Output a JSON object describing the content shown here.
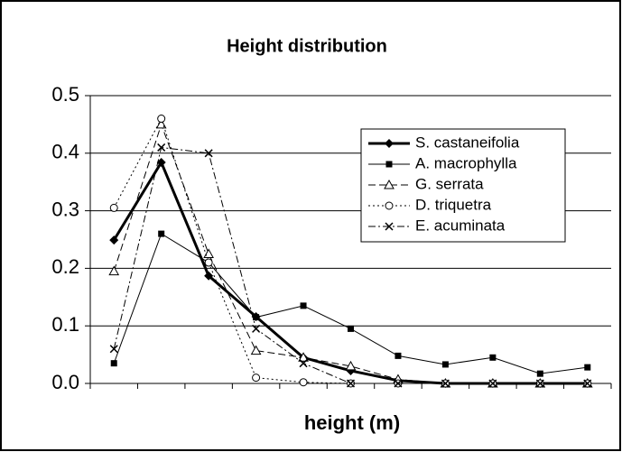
{
  "chart_data": {
    "type": "line",
    "title": "Height distribution",
    "x_label": "height (m)",
    "categories": [
      null,
      null,
      null,
      null,
      null,
      null,
      null,
      null,
      null,
      null,
      null
    ],
    "ylim": [
      0,
      0.5
    ],
    "yticks": [
      {
        "value": 0,
        "label": "0.0"
      },
      0.1,
      0.2,
      0.3,
      0.4,
      0.5
    ],
    "grid": true,
    "legend": "upper right",
    "series": [
      {
        "name": "S. castaneifolia",
        "color": "#000000",
        "marker": "diamond",
        "dash": "solid",
        "width": 3,
        "values": [
          0.249,
          0.384,
          0.187,
          0.116,
          0.045,
          0.022,
          0.005,
          0,
          0,
          0,
          0
        ]
      },
      {
        "name": "A. macrophylla",
        "color": "#000000",
        "marker": "square",
        "dash": "solid",
        "width": 1,
        "values": [
          0.035,
          0.26,
          0.21,
          0.115,
          0.135,
          0.095,
          0.048,
          0.033,
          0.045,
          0.017,
          0.028
        ]
      },
      {
        "name": "G. serrata",
        "color": "#000000",
        "marker": "triangle",
        "dash": "dashed",
        "width": 1,
        "values": [
          0.195,
          0.45,
          0.225,
          0.057,
          0.045,
          0.03,
          0.007,
          0,
          0,
          0,
          0
        ]
      },
      {
        "name": "D. triquetra",
        "color": "#000000",
        "marker": "circle",
        "dash": "dotted",
        "width": 1,
        "values": [
          0.305,
          0.46,
          0.21,
          0.01,
          0.002,
          0,
          0,
          0,
          0,
          0,
          0
        ]
      },
      {
        "name": "E. acuminata",
        "color": "#000000",
        "marker": "x",
        "dash": "dashdot",
        "width": 1,
        "values": [
          0.06,
          0.41,
          0.4,
          0.095,
          0.035,
          0,
          0,
          0,
          0,
          0,
          0
        ]
      }
    ]
  }
}
